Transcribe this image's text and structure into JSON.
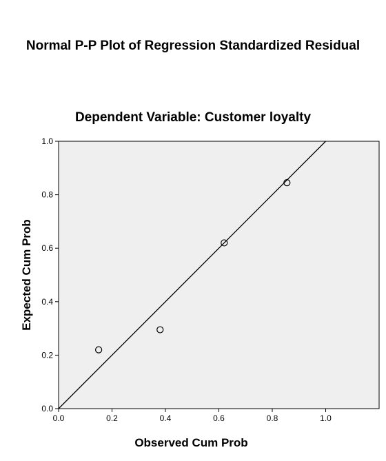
{
  "chart_data": {
    "type": "scatter",
    "title": "Normal P-P Plot of Regression Standardized Residual",
    "subtitle": "Dependent Variable: Customer loyalty",
    "xlabel": "Observed Cum Prob",
    "ylabel": "Expected Cum Prob",
    "xlim": [
      0.0,
      1.2
    ],
    "ylim": [
      0.0,
      1.0
    ],
    "xticks": [
      "0.0",
      "0.2",
      "0.4",
      "0.6",
      "0.8",
      "1.0"
    ],
    "yticks": [
      "0.0",
      "0.2",
      "0.4",
      "0.6",
      "0.8",
      "1.0"
    ],
    "grid": false,
    "reference_line": {
      "from": [
        0.0,
        0.0
      ],
      "to": [
        1.0,
        1.0
      ]
    },
    "points": {
      "x": [
        0.15,
        0.38,
        0.62,
        0.855
      ],
      "y": [
        0.22,
        0.295,
        0.62,
        0.845
      ]
    },
    "plot_background": "#efefef",
    "axis_color": "#000000"
  }
}
